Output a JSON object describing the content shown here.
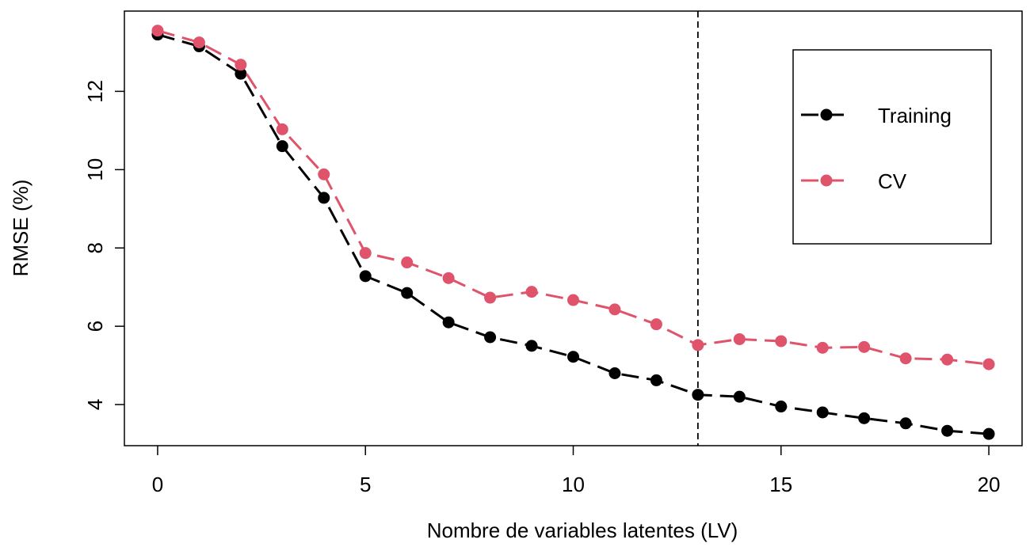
{
  "chart_data": {
    "type": "line",
    "title": "",
    "xlabel": "Nombre de variables latentes (LV)",
    "ylabel": "RMSE (%)",
    "xlim": [
      -0.8,
      20.8
    ],
    "ylim": [
      2.95,
      14.05
    ],
    "x_ticks": [
      0,
      5,
      10,
      15,
      20
    ],
    "y_ticks": [
      4,
      6,
      8,
      10,
      12
    ],
    "x": [
      0,
      1,
      2,
      3,
      4,
      5,
      6,
      7,
      8,
      9,
      10,
      11,
      12,
      13,
      14,
      15,
      16,
      17,
      18,
      19,
      20
    ],
    "series": [
      {
        "name": "Training",
        "color": "#000000",
        "values": [
          13.45,
          13.15,
          12.45,
          10.6,
          9.28,
          7.28,
          6.85,
          6.1,
          5.72,
          5.5,
          5.22,
          4.8,
          4.62,
          4.25,
          4.2,
          3.95,
          3.8,
          3.65,
          3.52,
          3.33,
          3.25
        ]
      },
      {
        "name": "CV",
        "color": "#DF536B",
        "values": [
          13.55,
          13.25,
          12.68,
          11.03,
          9.88,
          7.87,
          7.63,
          7.23,
          6.73,
          6.88,
          6.67,
          6.43,
          6.05,
          5.52,
          5.67,
          5.62,
          5.45,
          5.47,
          5.18,
          5.15,
          5.03
        ]
      }
    ],
    "vline": {
      "x": 13,
      "style": "dashed",
      "color": "#000000"
    },
    "grid": false,
    "legend": {
      "position": "top-right",
      "entries": [
        "Training",
        "CV"
      ]
    }
  }
}
